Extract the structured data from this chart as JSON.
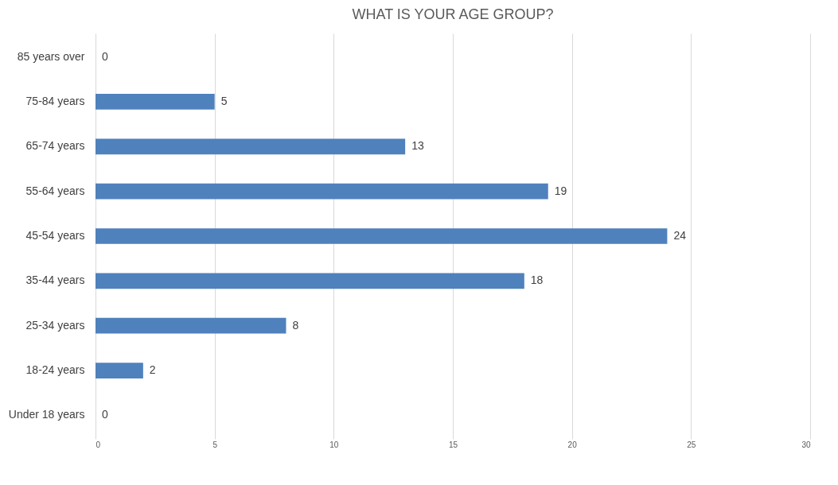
{
  "chart_data": {
    "type": "bar",
    "orientation": "horizontal",
    "title": "WHAT IS YOUR AGE GROUP?",
    "categories": [
      "85 years over",
      "75-84 years",
      "65-74 years",
      "55-64 years",
      "45-54 years",
      "35-44 years",
      "25-34 years",
      "18-24 years",
      "Under 18 years"
    ],
    "values": [
      0,
      5,
      13,
      19,
      24,
      18,
      8,
      2,
      0
    ],
    "color": "#4f81bd",
    "xlim": [
      0,
      30
    ],
    "xticks": [
      0,
      5,
      10,
      15,
      20,
      25,
      30
    ],
    "grid": "x",
    "data_labels": true
  }
}
